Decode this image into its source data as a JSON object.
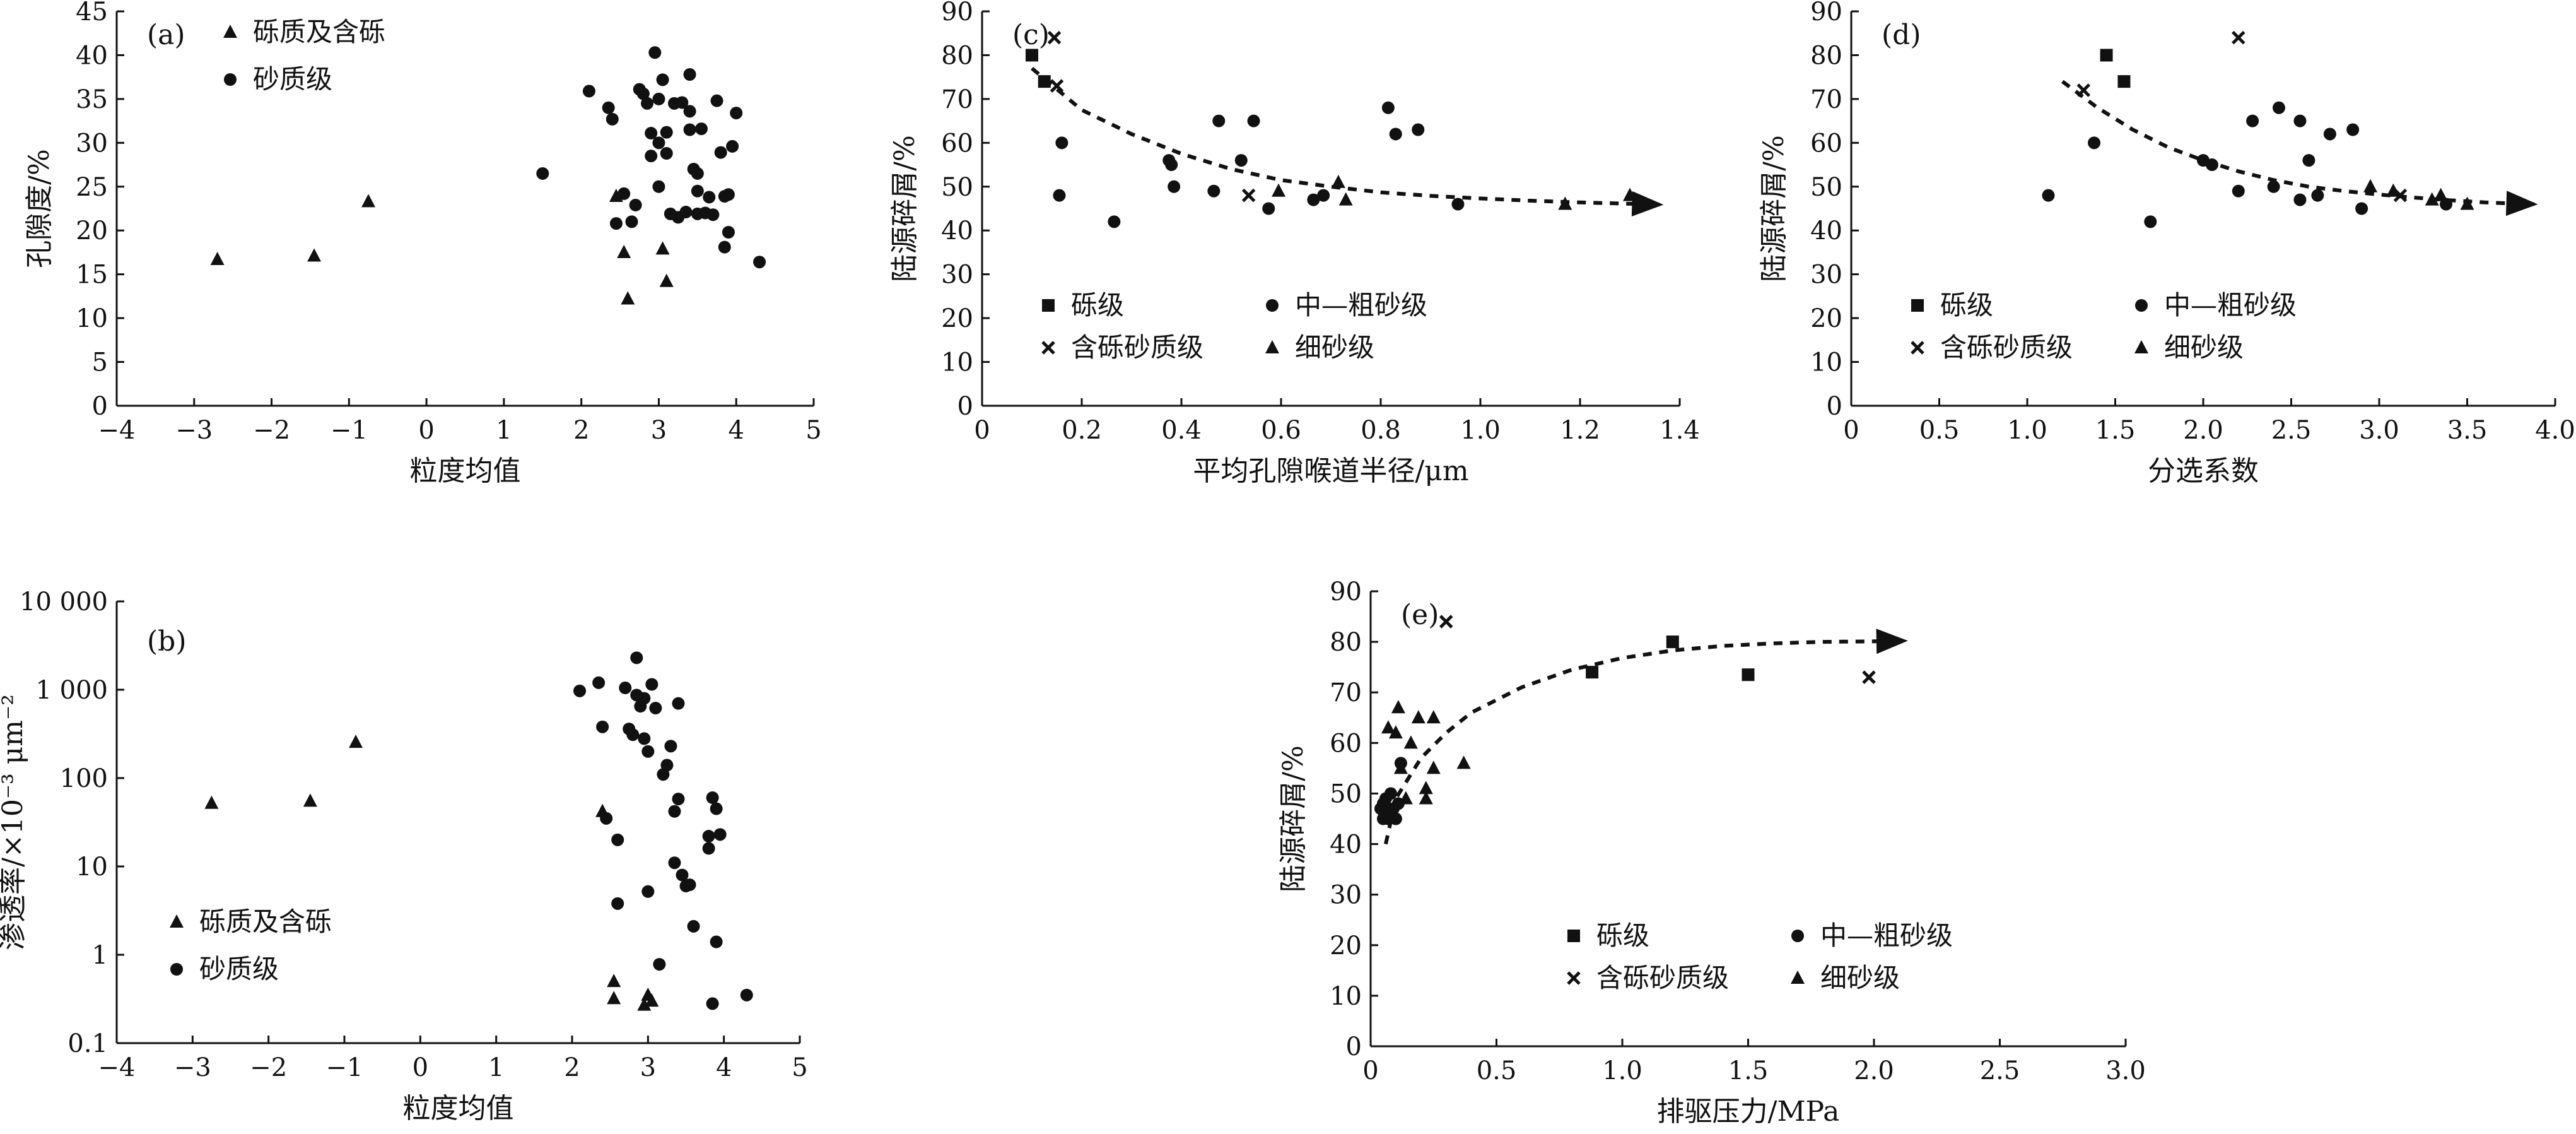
{
  "chart_data": [
    {
      "panel": "(a)",
      "type": "scatter",
      "xlabel": "粒度均值",
      "ylabel": "孔隙度/%",
      "xlim": [
        -4,
        5
      ],
      "ylim": [
        0,
        45
      ],
      "xticks": [
        -4,
        -3,
        -2,
        -1,
        0,
        1,
        2,
        3,
        4,
        5
      ],
      "yticks": [
        0,
        5,
        10,
        15,
        20,
        25,
        30,
        35,
        40,
        45
      ],
      "legend_position": "top-left",
      "series": [
        {
          "name": "砾质及含砾",
          "marker": "triangle",
          "points": [
            [
              -2.7,
              16.7
            ],
            [
              -1.45,
              17.1
            ],
            [
              -0.75,
              23.3
            ],
            [
              2.45,
              23.9
            ],
            [
              2.55,
              17.5
            ],
            [
              2.6,
              12.2
            ],
            [
              3.05,
              17.9
            ],
            [
              3.1,
              14.2
            ]
          ]
        },
        {
          "name": "砂质级",
          "marker": "circle",
          "points": [
            [
              1.5,
              26.5
            ],
            [
              2.1,
              35.9
            ],
            [
              2.35,
              34
            ],
            [
              2.4,
              32.7
            ],
            [
              2.45,
              20.8
            ],
            [
              2.55,
              24.2
            ],
            [
              2.65,
              21
            ],
            [
              2.7,
              22.9
            ],
            [
              2.75,
              36.1
            ],
            [
              2.8,
              35.6
            ],
            [
              2.85,
              34.5
            ],
            [
              2.9,
              28.5
            ],
            [
              2.9,
              31.1
            ],
            [
              2.95,
              40.3
            ],
            [
              3.0,
              35
            ],
            [
              3.0,
              25
            ],
            [
              3.0,
              30
            ],
            [
              3.05,
              37.2
            ],
            [
              3.1,
              28.8
            ],
            [
              3.1,
              31.2
            ],
            [
              3.15,
              21.9
            ],
            [
              3.2,
              34.5
            ],
            [
              3.25,
              21.5
            ],
            [
              3.3,
              34.6
            ],
            [
              3.35,
              22.1
            ],
            [
              3.4,
              33.6
            ],
            [
              3.4,
              31.5
            ],
            [
              3.4,
              37.8
            ],
            [
              3.45,
              27
            ],
            [
              3.5,
              24.5
            ],
            [
              3.5,
              21.9
            ],
            [
              3.5,
              26.5
            ],
            [
              3.55,
              31.6
            ],
            [
              3.6,
              22
            ],
            [
              3.65,
              23.8
            ],
            [
              3.7,
              21.8
            ],
            [
              3.75,
              34.8
            ],
            [
              3.8,
              28.9
            ],
            [
              3.85,
              23.9
            ],
            [
              3.85,
              18.1
            ],
            [
              3.9,
              19.8
            ],
            [
              3.9,
              24.1
            ],
            [
              3.95,
              29.6
            ],
            [
              4.0,
              33.4
            ],
            [
              4.3,
              16.4
            ]
          ]
        }
      ]
    },
    {
      "panel": "(b)",
      "type": "scatter",
      "xlabel": "粒度均值",
      "ylabel": "渗透率/×10⁻³ μm⁻²",
      "y_scale": "log",
      "xlim": [
        -4,
        5
      ],
      "ylim": [
        0.1,
        10000
      ],
      "xticks": [
        -4,
        -3,
        -2,
        -1,
        0,
        1,
        2,
        3,
        4,
        5
      ],
      "yticks": [
        0.1,
        1,
        10,
        100,
        1000,
        10000
      ],
      "ytick_labels": [
        "0.1",
        "1",
        "10",
        "100",
        "1 000",
        "10 000"
      ],
      "legend_position": "bottom-left",
      "series": [
        {
          "name": "砾质及含砾",
          "marker": "triangle",
          "points": [
            [
              -2.75,
              52
            ],
            [
              -1.45,
              55
            ],
            [
              -0.85,
              255
            ],
            [
              2.4,
              42
            ],
            [
              2.55,
              0.5
            ],
            [
              2.55,
              0.32
            ],
            [
              2.95,
              0.27
            ],
            [
              3.0,
              0.35
            ],
            [
              3.05,
              0.3
            ]
          ]
        },
        {
          "name": "砂质级",
          "marker": "circle",
          "points": [
            [
              2.1,
              970
            ],
            [
              2.35,
              1200
            ],
            [
              2.4,
              380
            ],
            [
              2.45,
              35
            ],
            [
              2.6,
              20
            ],
            [
              2.6,
              3.8
            ],
            [
              2.7,
              1050
            ],
            [
              2.75,
              360
            ],
            [
              2.8,
              310
            ],
            [
              2.85,
              2300
            ],
            [
              2.85,
              870
            ],
            [
              2.9,
              650
            ],
            [
              2.95,
              800
            ],
            [
              2.95,
              280
            ],
            [
              3.0,
              200
            ],
            [
              3.0,
              5.2
            ],
            [
              3.05,
              1150
            ],
            [
              3.1,
              620
            ],
            [
              3.15,
              0.78
            ],
            [
              3.2,
              110
            ],
            [
              3.25,
              140
            ],
            [
              3.3,
              230
            ],
            [
              3.35,
              42
            ],
            [
              3.35,
              11
            ],
            [
              3.4,
              700
            ],
            [
              3.4,
              58
            ],
            [
              3.45,
              8
            ],
            [
              3.5,
              6
            ],
            [
              3.55,
              6.2
            ],
            [
              3.6,
              2.1
            ],
            [
              3.8,
              16
            ],
            [
              3.8,
              22
            ],
            [
              3.85,
              60
            ],
            [
              3.9,
              1.4
            ],
            [
              3.9,
              45
            ],
            [
              3.95,
              23
            ],
            [
              3.85,
              0.28
            ],
            [
              4.3,
              0.35
            ]
          ]
        }
      ]
    },
    {
      "panel": "(c)",
      "type": "scatter",
      "xlabel": "平均孔隙喉道半径/μm",
      "ylabel": "陆源碎屑/%",
      "xlim": [
        0,
        1.4
      ],
      "ylim": [
        0,
        90
      ],
      "xticks": [
        0,
        0.2,
        0.4,
        0.6,
        0.8,
        1.0,
        1.2,
        1.4
      ],
      "xtick_labels": [
        "0",
        "0.2",
        "0.4",
        "0.6",
        "0.8",
        "1.0",
        "1.2",
        "1.4"
      ],
      "yticks": [
        0,
        10,
        20,
        30,
        40,
        50,
        60,
        70,
        80,
        90
      ],
      "legend_position": "bottom-left",
      "series": [
        {
          "name": "砾级",
          "marker": "square",
          "points": [
            [
              0.1,
              80
            ],
            [
              0.125,
              74
            ]
          ]
        },
        {
          "name": "中—粗砂级",
          "marker": "circle",
          "points": [
            [
              0.155,
              48
            ],
            [
              0.16,
              60
            ],
            [
              0.265,
              42
            ],
            [
              0.375,
              56
            ],
            [
              0.38,
              55
            ],
            [
              0.385,
              50
            ],
            [
              0.465,
              49
            ],
            [
              0.475,
              65
            ],
            [
              0.52,
              56
            ],
            [
              0.545,
              65
            ],
            [
              0.575,
              45
            ],
            [
              0.665,
              47
            ],
            [
              0.685,
              48
            ],
            [
              0.815,
              68
            ],
            [
              0.83,
              62
            ],
            [
              0.875,
              63
            ],
            [
              0.955,
              46
            ]
          ]
        },
        {
          "name": "含砾砂质级",
          "marker": "cross",
          "points": [
            [
              0.145,
              84
            ],
            [
              0.15,
              73
            ],
            [
              0.535,
              48
            ]
          ]
        },
        {
          "name": "细砂级",
          "marker": "triangle",
          "points": [
            [
              0.595,
              49
            ],
            [
              0.715,
              51
            ],
            [
              0.73,
              47
            ],
            [
              1.17,
              46
            ],
            [
              1.3,
              48
            ]
          ]
        }
      ],
      "trendline": [
        [
          0.1,
          77
        ],
        [
          0.2,
          67.5
        ],
        [
          0.3,
          62
        ],
        [
          0.4,
          57.5
        ],
        [
          0.5,
          54
        ],
        [
          0.6,
          51.5
        ],
        [
          0.7,
          50
        ],
        [
          0.8,
          48.7
        ],
        [
          0.9,
          47.9
        ],
        [
          1.0,
          47.3
        ],
        [
          1.1,
          46.8
        ],
        [
          1.2,
          46.4
        ],
        [
          1.3,
          46.1
        ],
        [
          1.36,
          45.9
        ]
      ]
    },
    {
      "panel": "(d)",
      "type": "scatter",
      "xlabel": "分选系数",
      "ylabel": "陆源碎屑/%",
      "xlim": [
        0,
        4.0
      ],
      "ylim": [
        0,
        90
      ],
      "xticks": [
        0,
        0.5,
        1.0,
        1.5,
        2.0,
        2.5,
        3.0,
        3.5,
        4.0
      ],
      "xtick_labels": [
        "0",
        "0.5",
        "1.0",
        "1.5",
        "2.0",
        "2.5",
        "3.0",
        "3.5",
        "4.0"
      ],
      "yticks": [
        0,
        10,
        20,
        30,
        40,
        50,
        60,
        70,
        80,
        90
      ],
      "legend_position": "bottom-left",
      "series": [
        {
          "name": "砾级",
          "marker": "square",
          "points": [
            [
              1.45,
              80
            ],
            [
              1.55,
              74
            ]
          ]
        },
        {
          "name": "中—粗砂级",
          "marker": "circle",
          "points": [
            [
              1.12,
              48
            ],
            [
              1.38,
              60
            ],
            [
              1.7,
              42
            ],
            [
              2.0,
              56
            ],
            [
              2.05,
              55
            ],
            [
              2.2,
              49
            ],
            [
              2.28,
              65
            ],
            [
              2.4,
              50
            ],
            [
              2.43,
              68
            ],
            [
              2.55,
              65
            ],
            [
              2.55,
              47
            ],
            [
              2.6,
              56
            ],
            [
              2.65,
              48
            ],
            [
              2.72,
              62
            ],
            [
              2.85,
              63
            ],
            [
              2.9,
              45
            ],
            [
              3.38,
              46
            ]
          ]
        },
        {
          "name": "含砾砂质级",
          "marker": "cross",
          "points": [
            [
              1.32,
              72
            ],
            [
              2.2,
              84
            ],
            [
              3.12,
              48
            ]
          ]
        },
        {
          "name": "细砂级",
          "marker": "triangle",
          "points": [
            [
              2.95,
              50
            ],
            [
              3.08,
              49
            ],
            [
              3.3,
              47
            ],
            [
              3.35,
              48
            ],
            [
              3.5,
              46
            ]
          ]
        }
      ],
      "trendline": [
        [
          1.2,
          74
        ],
        [
          1.4,
          68
        ],
        [
          1.6,
          63
        ],
        [
          1.8,
          59
        ],
        [
          2.0,
          56
        ],
        [
          2.2,
          53.5
        ],
        [
          2.4,
          51.5
        ],
        [
          2.6,
          50
        ],
        [
          2.8,
          49
        ],
        [
          3.0,
          48.2
        ],
        [
          3.2,
          47.5
        ],
        [
          3.4,
          46.9
        ],
        [
          3.6,
          46.4
        ],
        [
          3.8,
          46.1
        ],
        [
          3.88,
          46
        ]
      ]
    },
    {
      "panel": "(e)",
      "type": "scatter",
      "xlabel": "排驱压力/MPa",
      "ylabel": "陆源碎屑/%",
      "xlim": [
        0,
        3.0
      ],
      "ylim": [
        0,
        90
      ],
      "xticks": [
        0,
        0.5,
        1.0,
        1.5,
        2.0,
        2.5,
        3.0
      ],
      "xtick_labels": [
        "0",
        "0.5",
        "1.0",
        "1.5",
        "2.0",
        "2.5",
        "3.0"
      ],
      "yticks": [
        0,
        10,
        20,
        30,
        40,
        50,
        60,
        70,
        80,
        90
      ],
      "legend_position": "bottom-center",
      "series": [
        {
          "name": "砾级",
          "marker": "square",
          "points": [
            [
              0.88,
              74
            ],
            [
              1.2,
              80
            ],
            [
              1.5,
              73.5
            ]
          ]
        },
        {
          "name": "中—粗砂级",
          "marker": "circle",
          "points": [
            [
              0.04,
              47
            ],
            [
              0.05,
              45
            ],
            [
              0.05,
              48
            ],
            [
              0.06,
              46
            ],
            [
              0.06,
              49
            ],
            [
              0.07,
              45
            ],
            [
              0.07,
              47
            ],
            [
              0.08,
              46
            ],
            [
              0.08,
              50
            ],
            [
              0.09,
              47
            ],
            [
              0.1,
              45
            ],
            [
              0.11,
              48
            ],
            [
              0.12,
              56
            ]
          ]
        },
        {
          "name": "含砾砂质级",
          "marker": "cross",
          "points": [
            [
              0.06,
              48
            ],
            [
              0.3,
              84
            ],
            [
              1.98,
              73
            ]
          ]
        },
        {
          "name": "细砂级",
          "marker": "triangle",
          "points": [
            [
              0.06,
              48
            ],
            [
              0.07,
              63
            ],
            [
              0.1,
              62
            ],
            [
              0.11,
              67
            ],
            [
              0.12,
              55
            ],
            [
              0.14,
              49
            ],
            [
              0.16,
              60
            ],
            [
              0.19,
              65
            ],
            [
              0.22,
              49
            ],
            [
              0.22,
              51
            ],
            [
              0.25,
              55
            ],
            [
              0.25,
              65
            ],
            [
              0.37,
              56
            ]
          ]
        }
      ],
      "trendline": [
        [
          0.06,
          40
        ],
        [
          0.1,
          49
        ],
        [
          0.2,
          57
        ],
        [
          0.3,
          62
        ],
        [
          0.4,
          66
        ],
        [
          0.6,
          71
        ],
        [
          0.8,
          74.5
        ],
        [
          1.0,
          76.8
        ],
        [
          1.2,
          78.3
        ],
        [
          1.4,
          79.2
        ],
        [
          1.6,
          79.7
        ],
        [
          1.8,
          80
        ],
        [
          2.0,
          80.1
        ],
        [
          2.12,
          80.2
        ]
      ]
    }
  ]
}
